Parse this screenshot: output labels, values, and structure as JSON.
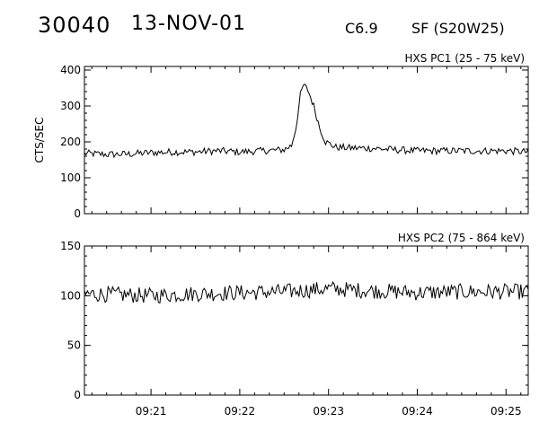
{
  "header": {
    "event_id": "30040",
    "date": "13-NOV-01",
    "goes_class": "C6.9",
    "flare_location": "SF (S20W25)"
  },
  "chart_data": [
    {
      "type": "line",
      "title": "HXS PC1 (25 - 75 keV)",
      "ylabel": "CTS/SEC",
      "xlabel": "",
      "x_range": [
        "09:20:15",
        "09:25:15"
      ],
      "ylim": [
        0,
        410
      ],
      "yticks": [
        0,
        100,
        200,
        300,
        400
      ],
      "xticks": [
        "09:21",
        "09:22",
        "09:23",
        "09:24",
        "09:25"
      ],
      "grid": false,
      "series": [
        {
          "points": [
            [
              "09:20:15",
              168
            ],
            [
              "09:20:30",
              165
            ],
            [
              "09:20:45",
              166
            ],
            [
              "09:21:00",
              170
            ],
            [
              "09:21:15",
              172
            ],
            [
              "09:21:30",
              172
            ],
            [
              "09:21:45",
              175
            ],
            [
              "09:22:00",
              172
            ],
            [
              "09:22:15",
              175
            ],
            [
              "09:22:30",
              178
            ],
            [
              "09:22:35",
              190
            ],
            [
              "09:22:38",
              240
            ],
            [
              "09:22:41",
              330
            ],
            [
              "09:22:43",
              358
            ],
            [
              "09:22:46",
              345
            ],
            [
              "09:22:50",
              300
            ],
            [
              "09:22:54",
              240
            ],
            [
              "09:22:58",
              200
            ],
            [
              "09:23:05",
              185
            ],
            [
              "09:23:15",
              183
            ],
            [
              "09:23:30",
              182
            ],
            [
              "09:23:45",
              178
            ],
            [
              "09:24:00",
              175
            ],
            [
              "09:24:15",
              175
            ],
            [
              "09:24:30",
              175
            ],
            [
              "09:24:45",
              175
            ],
            [
              "09:25:00",
              175
            ],
            [
              "09:25:15",
              172
            ]
          ],
          "noise": 10
        }
      ]
    },
    {
      "type": "line",
      "title": "HXS PC2 (75 - 864 keV)",
      "ylabel": "",
      "xlabel": "",
      "x_range": [
        "09:20:15",
        "09:25:15"
      ],
      "ylim": [
        0,
        150
      ],
      "yticks": [
        0,
        50,
        100,
        150
      ],
      "xticks": [
        "09:21",
        "09:22",
        "09:23",
        "09:24",
        "09:25"
      ],
      "grid": false,
      "series": [
        {
          "points": [
            [
              "09:20:15",
              102
            ],
            [
              "09:21:00",
              100
            ],
            [
              "09:21:30",
              102
            ],
            [
              "09:22:00",
              103
            ],
            [
              "09:22:30",
              104
            ],
            [
              "09:23:00",
              107
            ],
            [
              "09:23:30",
              105
            ],
            [
              "09:24:00",
              103
            ],
            [
              "09:24:30",
              104
            ],
            [
              "09:25:00",
              104
            ],
            [
              "09:25:15",
              104
            ]
          ],
          "noise": 8
        }
      ]
    }
  ]
}
